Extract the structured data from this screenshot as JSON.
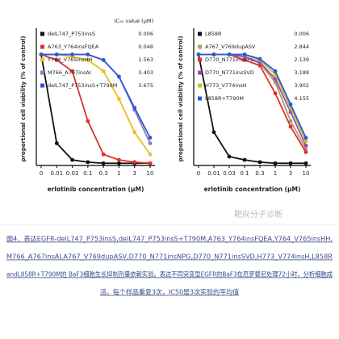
{
  "chart_data": [
    {
      "type": "line",
      "legend_title": "IC₅₀ value (μM)",
      "y_label": "proportional cell viability (% of control)",
      "x_label": "erlotinib concentration (μM)",
      "categories": [
        "0",
        "0.01",
        "0.03",
        "0.1",
        "0.3",
        "1",
        "3",
        "10"
      ],
      "ylim": [
        0,
        120
      ],
      "series": [
        {
          "name": "delL747_P753insS",
          "ic50": 0.006,
          "color": "#111111",
          "values": [
            100,
            20,
            5,
            3,
            2,
            2,
            2,
            2
          ]
        },
        {
          "name": "A763_Y764insFQEA",
          "ic50": 0.048,
          "color": "#e0302a",
          "values": [
            100,
            95,
            85,
            40,
            10,
            5,
            3,
            2
          ]
        },
        {
          "name": "Y764_V765insHH",
          "ic50": 1.563,
          "color": "#e8c020",
          "values": [
            100,
            100,
            98,
            95,
            85,
            60,
            30,
            10
          ]
        },
        {
          "name": "M766_A767insAI",
          "ic50": 3.403,
          "color": "#9a7ab8",
          "values": [
            100,
            100,
            100,
            100,
            95,
            80,
            50,
            20
          ]
        },
        {
          "name": "delL747_P753insS+T790M",
          "ic50": 3.675,
          "color": "#2a5ad8",
          "values": [
            100,
            100,
            100,
            100,
            95,
            80,
            52,
            25
          ]
        }
      ]
    },
    {
      "type": "line",
      "y_label": "proportional cell viability (% of control)",
      "x_label": "erlotinib concentration (μM)",
      "categories": [
        "0",
        "0.01",
        "0.03",
        "0.1",
        "0.3",
        "1",
        "3",
        "10"
      ],
      "ylim": [
        0,
        120
      ],
      "series": [
        {
          "name": "L858R",
          "ic50": 0.006,
          "color": "#111111",
          "values": [
            100,
            30,
            8,
            5,
            3,
            2,
            2,
            2
          ]
        },
        {
          "name": "A767_V769dupASV",
          "ic50": 2.844,
          "color": "#b09a70",
          "values": [
            100,
            100,
            100,
            98,
            92,
            75,
            40,
            15
          ]
        },
        {
          "name": "D770_N771insNPG",
          "ic50": 2.139,
          "color": "#e0302a",
          "values": [
            100,
            100,
            100,
            95,
            90,
            65,
            35,
            12
          ]
        },
        {
          "name": "D770_N771insSVD",
          "ic50": 3.188,
          "color": "#9a4ab8",
          "values": [
            100,
            100,
            100,
            98,
            93,
            78,
            48,
            18
          ]
        },
        {
          "name": "H773_V774insH",
          "ic50": 3.902,
          "color": "#c8c020",
          "values": [
            100,
            100,
            100,
            100,
            95,
            82,
            52,
            22
          ]
        },
        {
          "name": "L858R+T790M",
          "ic50": 4.155,
          "color": "#2a5ad8",
          "values": [
            100,
            100,
            100,
            100,
            96,
            85,
            55,
            25
          ]
        }
      ]
    }
  ],
  "watermark": "靶向分子诊断",
  "caption": [
    "图4．表达EGFR-delL747_P753insS,delL747_P753insS+T790M,A763_Y764insFQEA,Y764_V765insHH,",
    "M766_A767insAI,A767_V769dupASV,D770_N771insNPG,D770_N771insSVD,H773_V774insH,L858R",
    "andL858R+T790M的 BaF3细胞生长抑制剂量依赖实验。表达不同突变型EGFR的BaF3在厄罗替尼处理72小时，分析细胞成",
    "活。每个样品重复3次，IC50是3次实验的平均值"
  ]
}
